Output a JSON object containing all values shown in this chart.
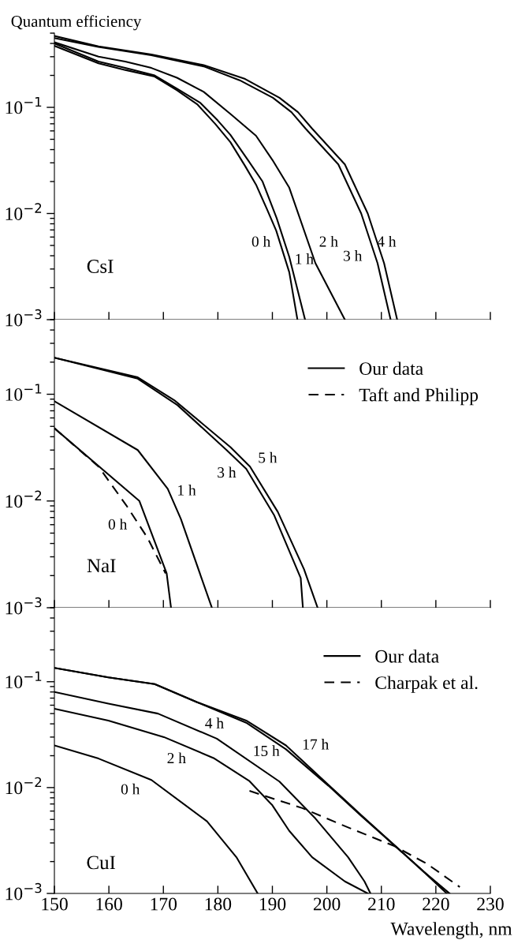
{
  "chart_data": [
    {
      "type": "line",
      "ylabel": "Quantum efficiency",
      "log": true,
      "xlim": [
        150,
        230
      ],
      "xticks": [
        150,
        160,
        170,
        180,
        190,
        200,
        210,
        220,
        230
      ],
      "ylim": [
        0.001,
        0.5
      ],
      "yticks": [
        {
          "value": 0.001,
          "label": "10$^{−3}$"
        },
        {
          "value": 0.01,
          "label": "10$^{−2}$"
        },
        {
          "value": 0.1,
          "label": "10$^{−1}$"
        }
      ],
      "tick_labels": "y",
      "series": [
        {
          "color": "#000000",
          "line_style": "solid",
          "x": [
            150,
            158.1,
            163,
            168.4,
            172.5,
            176.2,
            179.5,
            182.3,
            185,
            187,
            189,
            190.7,
            193.1,
            194.6
          ],
          "values": [
            0.38,
            0.26,
            0.225,
            0.195,
            0.145,
            0.107,
            0.07,
            0.047,
            0.028,
            0.0187,
            0.011,
            0.0069,
            0.0028,
            0.001
          ]
        },
        {
          "color": "#000000",
          "line_style": "solid",
          "x": [
            150,
            158.1,
            163,
            168.4,
            172.5,
            176.8,
            180,
            182.3,
            185.5,
            188.2,
            190.8,
            193.1,
            196.0
          ],
          "values": [
            0.4,
            0.27,
            0.235,
            0.2,
            0.15,
            0.11,
            0.075,
            0.055,
            0.032,
            0.02,
            0.009,
            0.0039,
            0.001
          ]
        },
        {
          "color": "#000000",
          "line_style": "solid",
          "x": [
            150,
            158.1,
            163,
            167.8,
            172.5,
            177.4,
            182.5,
            187,
            190,
            193.1,
            197.9,
            203.3
          ],
          "values": [
            0.41,
            0.3,
            0.27,
            0.235,
            0.19,
            0.14,
            0.085,
            0.054,
            0.032,
            0.0175,
            0.0034,
            0.001
          ]
        },
        {
          "color": "#000000",
          "line_style": "solid",
          "x": [
            150,
            158.1,
            167.8,
            177.4,
            184,
            190.1,
            193.5,
            196.1,
            202.1,
            206.3,
            209.3,
            211.7
          ],
          "values": [
            0.45,
            0.37,
            0.31,
            0.243,
            0.18,
            0.123,
            0.09,
            0.063,
            0.029,
            0.01,
            0.0034,
            0.001
          ]
        },
        {
          "color": "#000000",
          "line_style": "solid",
          "x": [
            150,
            158.1,
            167.8,
            177.4,
            185,
            191.3,
            194.7,
            197.3,
            203.3,
            207.5,
            210.5,
            212.9
          ],
          "values": [
            0.47,
            0.375,
            0.315,
            0.25,
            0.185,
            0.123,
            0.09,
            0.063,
            0.029,
            0.01,
            0.0034,
            0.001
          ]
        }
      ],
      "annotations": [
        "CsI",
        "0 h",
        "1 h",
        "2 h",
        "3 h",
        "4 h"
      ]
    },
    {
      "type": "line",
      "log": true,
      "xlim": [
        150,
        230
      ],
      "xticks": [
        150,
        160,
        170,
        180,
        190,
        200,
        210,
        220,
        230
      ],
      "ylim": [
        0.001,
        0.5
      ],
      "yticks": [
        {
          "value": 0.001,
          "label": "10$^{−3}$"
        },
        {
          "value": 0.01,
          "label": "10$^{−2}$"
        },
        {
          "value": 0.1,
          "label": "10$^{−1}$"
        }
      ],
      "tick_labels": "y",
      "legend": "top right",
      "series": [
        {
          "name": "Our data",
          "color": "#000000",
          "line_style": "solid",
          "x": [
            150,
            165.6,
            170.6,
            171.4
          ],
          "values": [
            0.048,
            0.01,
            0.0021,
            0.001
          ]
        },
        {
          "color": "#000000",
          "line_style": "solid",
          "x": [
            150,
            165.3,
            170.8,
            173.2,
            178.9
          ],
          "values": [
            0.086,
            0.03,
            0.013,
            0.0068,
            0.001
          ]
        },
        {
          "color": "#000000",
          "line_style": "solid",
          "x": [
            150,
            165.3,
            172.6,
            181.6,
            185.2,
            190.3,
            195.2,
            195.6
          ],
          "values": [
            0.22,
            0.14,
            0.079,
            0.03,
            0.02,
            0.0074,
            0.0019,
            0.001
          ]
        },
        {
          "color": "#000000",
          "line_style": "solid",
          "x": [
            150,
            165.3,
            172,
            182.3,
            185.9,
            191,
            195.8,
            198.3
          ],
          "values": [
            0.22,
            0.144,
            0.088,
            0.032,
            0.021,
            0.0079,
            0.0023,
            0.001
          ]
        },
        {
          "name": "Taft and Philipp",
          "color": "#000000",
          "line_style": "dashed",
          "x": [
            150,
            158.1,
            163.2,
            167.1,
            170.4
          ],
          "values": [
            0.048,
            0.021,
            0.0091,
            0.0045,
            0.0021
          ]
        }
      ],
      "annotations": [
        "NaI",
        "0 h",
        "1 h",
        "3 h",
        "5 h"
      ]
    },
    {
      "type": "line",
      "xlabel": "Wavelength, nm",
      "log": true,
      "xlim": [
        150,
        230
      ],
      "xticks": [
        150,
        160,
        170,
        180,
        190,
        200,
        210,
        220,
        230
      ],
      "ylim": [
        0.001,
        0.5
      ],
      "yticks": [
        {
          "value": 0.001,
          "label": "10$^{−3}$"
        },
        {
          "value": 0.01,
          "label": "10$^{−2}$"
        },
        {
          "value": 0.1,
          "label": "10$^{−1}$"
        }
      ],
      "legend": "top right",
      "series": [
        {
          "name": "Our data",
          "color": "#000000",
          "line_style": "solid",
          "x": [
            150,
            158.1,
            167.8,
            178,
            183.4,
            187.3
          ],
          "values": [
            0.025,
            0.0188,
            0.0118,
            0.0048,
            0.0022,
            0.001
          ]
        },
        {
          "color": "#000000",
          "line_style": "solid",
          "x": [
            150,
            159.9,
            170.1,
            179.2,
            185.8,
            190,
            193.1,
            197.3,
            203.3,
            207.5
          ],
          "values": [
            0.0556,
            0.043,
            0.03,
            0.019,
            0.0115,
            0.0068,
            0.0039,
            0.0022,
            0.0013,
            0.001
          ]
        },
        {
          "color": "#000000",
          "line_style": "solid",
          "x": [
            150,
            159.9,
            169,
            179.8,
            191.3,
            197.9,
            203.9,
            206.9,
            208.0
          ],
          "values": [
            0.08,
            0.062,
            0.05,
            0.029,
            0.0114,
            0.0051,
            0.0022,
            0.0013,
            0.001
          ]
        },
        {
          "color": "#000000",
          "line_style": "solid",
          "x": [
            150,
            159.9,
            168.4,
            176.2,
            185.2,
            192.5,
            200.3,
            206.3,
            212.9,
            217.8,
            222.0
          ],
          "values": [
            0.135,
            0.11,
            0.095,
            0.064,
            0.041,
            0.023,
            0.0104,
            0.0054,
            0.0027,
            0.0016,
            0.001
          ]
        },
        {
          "color": "#000000",
          "line_style": "solid",
          "x": [
            150,
            159.9,
            168.4,
            176.2,
            185.2,
            192.5,
            200.3,
            206.3,
            212.9,
            217.8,
            222.5
          ],
          "values": [
            0.135,
            0.11,
            0.095,
            0.064,
            0.043,
            0.025,
            0.0106,
            0.0055,
            0.0027,
            0.0016,
            0.001
          ]
        },
        {
          "name": "Charpak et al.",
          "color": "#000000",
          "line_style": "dashed",
          "x": [
            185.8,
            195.5,
            203.9,
            212.4,
            218.4,
            224.4
          ],
          "values": [
            0.0093,
            0.0064,
            0.0042,
            0.0028,
            0.0019,
            0.00115
          ]
        }
      ],
      "annotations": [
        "CuI",
        "0 h",
        "2 h",
        "4 h",
        "15 h",
        "17 h"
      ]
    }
  ]
}
